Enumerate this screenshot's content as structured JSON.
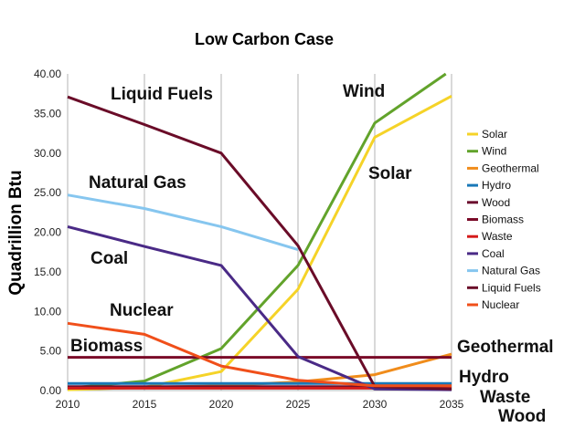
{
  "chart_data": {
    "type": "line",
    "title": "Low Carbon Case",
    "xlabel": "",
    "ylabel": "Quadrillion Btu",
    "x": [
      2010,
      2015,
      2020,
      2025,
      2030,
      2035
    ],
    "xlim": [
      2010,
      2035
    ],
    "ylim": [
      0,
      40
    ],
    "ytick_step": 5,
    "x_ticks": [
      "2010",
      "2015",
      "2020",
      "2025",
      "2030",
      "2035"
    ],
    "y_ticks": [
      "0.00",
      "5.00",
      "10.00",
      "15.00",
      "20.00",
      "25.00",
      "30.00",
      "35.00",
      "40.00"
    ],
    "grid": "vertical",
    "legend_position": "right",
    "series": [
      {
        "name": "Solar",
        "color": "#f5d328",
        "values": [
          0.1,
          0.4,
          2.4,
          12.8,
          32.0,
          37.2
        ]
      },
      {
        "name": "Wind",
        "color": "#62a32b",
        "values": [
          0.3,
          1.2,
          5.3,
          15.8,
          33.8,
          40.5
        ]
      },
      {
        "name": "Geothermal",
        "color": "#f08c1b",
        "values": [
          0.3,
          0.4,
          0.6,
          1.1,
          2.0,
          4.6
        ]
      },
      {
        "name": "Hydro",
        "color": "#1978b8",
        "values": [
          0.9,
          0.9,
          0.9,
          0.9,
          0.9,
          0.9
        ]
      },
      {
        "name": "Wood",
        "color": "#6b0f2e",
        "values": [
          0.5,
          0.5,
          0.5,
          0.5,
          0.5,
          0.5
        ]
      },
      {
        "name": "Biomass",
        "color": "#7a0a28",
        "values": [
          4.2,
          4.2,
          4.2,
          4.2,
          4.2,
          4.2
        ]
      },
      {
        "name": "Waste",
        "color": "#d41a1a",
        "values": [
          0.3,
          0.3,
          0.3,
          0.3,
          0.3,
          0.3
        ]
      },
      {
        "name": "Coal",
        "color": "#4a2a86",
        "values": [
          20.7,
          18.2,
          15.8,
          4.3,
          0.2,
          0.1
        ]
      },
      {
        "name": "Natural Gas",
        "color": "#86c6ef",
        "values": [
          24.7,
          23.0,
          20.7,
          17.8,
          null,
          null
        ]
      },
      {
        "name": "Liquid Fuels",
        "color": "#6a0c28",
        "values": [
          37.1,
          33.6,
          30.0,
          18.3,
          0.5,
          0.2
        ]
      },
      {
        "name": "Nuclear",
        "color": "#f04f1a",
        "values": [
          8.5,
          7.1,
          3.1,
          1.3,
          0.6,
          0.6
        ]
      }
    ],
    "annotations": [
      {
        "text": "Liquid Fuels"
      },
      {
        "text": "Wind"
      },
      {
        "text": "Natural Gas"
      },
      {
        "text": "Solar"
      },
      {
        "text": "Coal"
      },
      {
        "text": "Nuclear"
      },
      {
        "text": "Biomass"
      },
      {
        "text": "Geothermal"
      },
      {
        "text": "Hydro"
      },
      {
        "text": "Waste"
      },
      {
        "text": "Wood"
      }
    ]
  }
}
